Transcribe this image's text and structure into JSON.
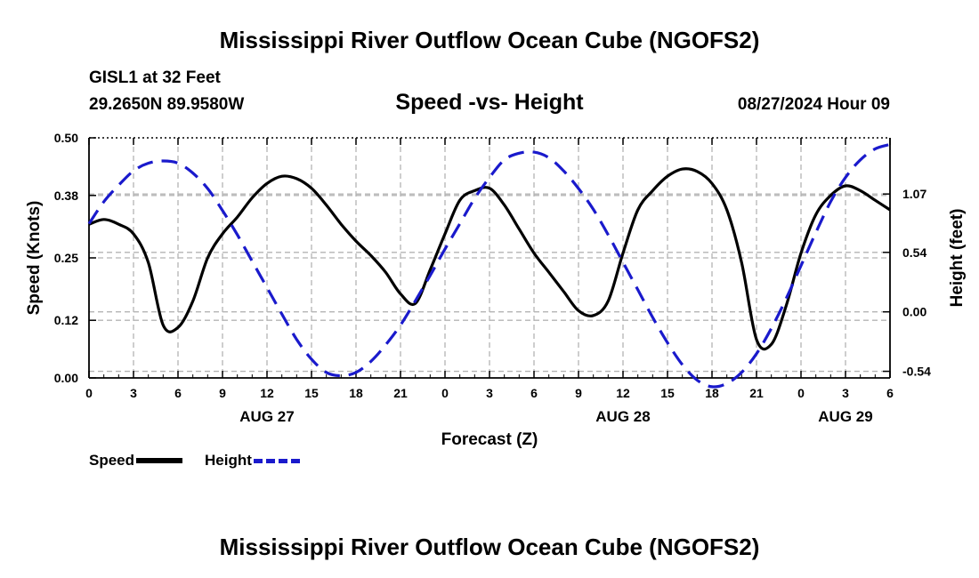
{
  "header": {
    "title": "Mississippi River Outflow Ocean Cube (NGOFS2)",
    "station": "GISL1 at 32 Feet",
    "coords": "29.2650N  89.9580W",
    "subtitle": "Speed -vs- Height",
    "date": "08/27/2024 Hour 09"
  },
  "footer": {
    "title": "Mississippi River Outflow Ocean Cube (NGOFS2)"
  },
  "legend": {
    "speed": "Speed",
    "height": "Height"
  },
  "colors": {
    "speed": "#000000",
    "height": "#1a1acc",
    "grid": "#b4b4b4"
  },
  "chart_data": {
    "type": "line",
    "xlabel": "Forecast (Z)",
    "ylabel": "Speed (Knots)",
    "ylabel_right": "Height (feet)",
    "x_range_hours": [
      0,
      54
    ],
    "ylim": [
      0,
      0.5
    ],
    "ylim_right": [
      -0.6,
      1.58
    ],
    "x_ticks": [
      0,
      3,
      6,
      9,
      12,
      15,
      18,
      21,
      24,
      27,
      30,
      33,
      36,
      39,
      42,
      45,
      48,
      51,
      54
    ],
    "x_tick_labels": [
      "0",
      "3",
      "6",
      "9",
      "12",
      "15",
      "18",
      "21",
      "0",
      "3",
      "6",
      "9",
      "12",
      "15",
      "18",
      "21",
      "0",
      "3",
      "6"
    ],
    "date_labels": [
      {
        "label": "AUG 27",
        "hour": 12
      },
      {
        "label": "AUG 28",
        "hour": 36
      },
      {
        "label": "AUG 29",
        "hour": 51
      }
    ],
    "y_ticks": [
      0.0,
      0.12,
      0.25,
      0.38,
      0.5
    ],
    "y_tick_labels": [
      "0.00",
      "0.12",
      "0.25",
      "0.38",
      "0.50"
    ],
    "y_ticks_right": [
      -0.54,
      0.0,
      0.54,
      1.07
    ],
    "y_tick_labels_right": [
      "-0.54",
      "0.00",
      "0.54",
      "1.07"
    ],
    "series": [
      {
        "name": "Speed",
        "axis": "left",
        "style": "solid",
        "x": [
          0,
          1,
          2,
          3,
          4,
          5,
          6,
          7,
          8,
          9,
          10,
          11,
          12,
          13,
          14,
          15,
          16,
          17,
          18,
          19,
          20,
          21,
          22,
          23,
          24,
          25,
          26,
          27,
          28,
          29,
          30,
          31,
          32,
          33,
          34,
          35,
          36,
          37,
          38,
          39,
          40,
          41,
          42,
          43,
          44,
          45,
          46,
          47,
          48,
          49,
          50,
          51,
          52,
          53,
          54
        ],
        "values": [
          0.32,
          0.33,
          0.32,
          0.3,
          0.24,
          0.11,
          0.105,
          0.16,
          0.25,
          0.3,
          0.335,
          0.375,
          0.405,
          0.42,
          0.415,
          0.395,
          0.36,
          0.32,
          0.285,
          0.255,
          0.22,
          0.175,
          0.155,
          0.225,
          0.3,
          0.37,
          0.39,
          0.395,
          0.36,
          0.31,
          0.26,
          0.22,
          0.18,
          0.14,
          0.13,
          0.16,
          0.26,
          0.35,
          0.39,
          0.42,
          0.435,
          0.43,
          0.405,
          0.35,
          0.24,
          0.08,
          0.07,
          0.15,
          0.26,
          0.34,
          0.38,
          0.4,
          0.39,
          0.37,
          0.35
        ]
      },
      {
        "name": "Height",
        "axis": "right",
        "style": "dashed",
        "x": [
          0,
          1,
          2,
          3,
          4,
          5,
          6,
          7,
          8,
          9,
          10,
          11,
          12,
          13,
          14,
          15,
          16,
          17,
          18,
          19,
          20,
          21,
          22,
          23,
          24,
          25,
          26,
          27,
          28,
          29,
          30,
          31,
          32,
          33,
          34,
          35,
          36,
          37,
          38,
          39,
          40,
          41,
          42,
          43,
          44,
          45,
          46,
          47,
          48,
          49,
          50,
          51,
          52,
          53,
          54
        ],
        "values": [
          0.8,
          1.0,
          1.15,
          1.28,
          1.35,
          1.37,
          1.35,
          1.26,
          1.12,
          0.92,
          0.7,
          0.46,
          0.22,
          -0.02,
          -0.25,
          -0.43,
          -0.55,
          -0.58,
          -0.55,
          -0.45,
          -0.3,
          -0.12,
          0.1,
          0.33,
          0.57,
          0.8,
          1.03,
          1.22,
          1.38,
          1.44,
          1.45,
          1.4,
          1.28,
          1.12,
          0.93,
          0.7,
          0.45,
          0.2,
          -0.05,
          -0.28,
          -0.48,
          -0.62,
          -0.68,
          -0.65,
          -0.55,
          -0.38,
          -0.15,
          0.12,
          0.42,
          0.72,
          1.0,
          1.22,
          1.38,
          1.48,
          1.52
        ]
      }
    ]
  }
}
